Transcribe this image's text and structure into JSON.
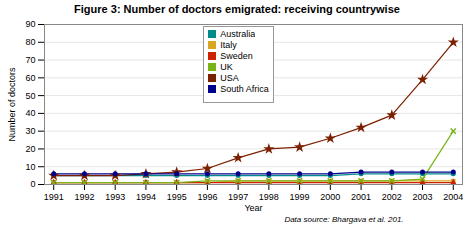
{
  "chart_data": {
    "type": "line",
    "title": "Figure 3: Number of doctors emigrated: receiving countrywise",
    "xlabel": "Year",
    "ylabel": "Number of doctors",
    "x": [
      1991,
      1992,
      1993,
      1994,
      1995,
      1996,
      1997,
      1998,
      1999,
      2000,
      2001,
      2002,
      2003,
      2004
    ],
    "series": [
      {
        "name": "Australia",
        "color": "#008B8B",
        "marker": "circle",
        "values": [
          5,
          5,
          5,
          5,
          5,
          5,
          5,
          5,
          5,
          5,
          6,
          6,
          6,
          6
        ]
      },
      {
        "name": "Italy",
        "color": "#DAA520",
        "marker": "square",
        "values": [
          1,
          1,
          1,
          1,
          1,
          1,
          2,
          2,
          2,
          2,
          2,
          2,
          2,
          2
        ]
      },
      {
        "name": "Sweden",
        "color": "#CC2200",
        "marker": "triangle",
        "values": [
          1,
          1,
          1,
          1,
          1,
          1,
          1,
          1,
          1,
          1,
          1,
          1,
          1,
          1
        ]
      },
      {
        "name": "UK",
        "color": "#7AB317",
        "marker": "times",
        "values": [
          1,
          1,
          1,
          1,
          1,
          2,
          2,
          2,
          2,
          2,
          2,
          2,
          3,
          30
        ]
      },
      {
        "name": "USA",
        "color": "#7B2000",
        "marker": "star",
        "values": [
          5,
          5,
          5,
          6,
          7,
          9,
          15,
          20,
          21,
          26,
          32,
          39,
          59,
          80
        ]
      },
      {
        "name": "South Africa",
        "color": "#00008B",
        "marker": "circle",
        "values": [
          6,
          6,
          6,
          6,
          6,
          6,
          6,
          6,
          6,
          6,
          7,
          7,
          7,
          7
        ]
      }
    ],
    "xlim": [
      1990.7,
      2004.3
    ],
    "xticks": [
      1991,
      1992,
      1993,
      1994,
      1995,
      1996,
      1997,
      1998,
      1999,
      2000,
      2001,
      2002,
      2003,
      2004
    ],
    "ylim": [
      0,
      90
    ],
    "yticks": [
      0,
      10,
      20,
      30,
      40,
      50,
      60,
      70,
      80,
      90
    ],
    "grid": true,
    "legend": "upper center",
    "annotations": [
      "Data source: Bhargava et al. 201."
    ]
  }
}
